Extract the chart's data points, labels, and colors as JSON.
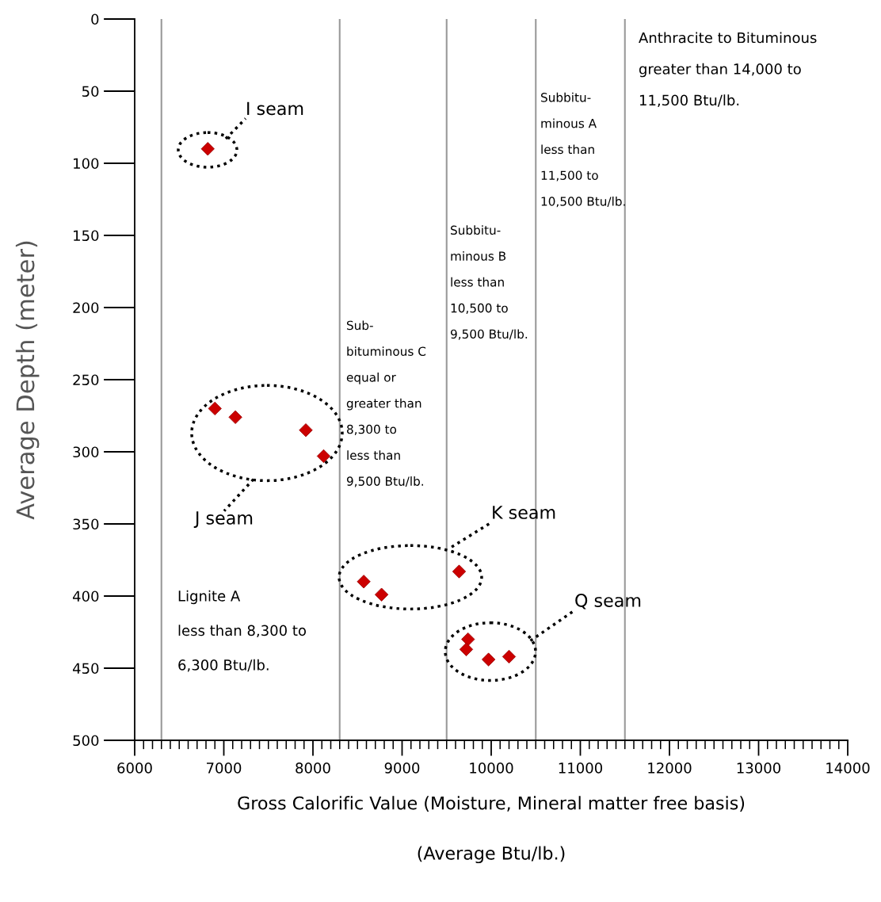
{
  "chart_data": {
    "type": "scatter",
    "xlabel": "Gross Calorific Value (Moisture, Mineral matter free basis)\n\n(Average Btu/lb.)",
    "ylabel": "Average Depth (meter)",
    "x": [
      6820,
      6900,
      7130,
      7920,
      8120,
      8570,
      8770,
      9640,
      9740,
      9720,
      9970,
      10200
    ],
    "series": [
      {
        "color": "#cc0000",
        "values": [
          90,
          270,
          276,
          285,
          303,
          390,
          399,
          383,
          430,
          437,
          444,
          442
        ]
      }
    ],
    "marker": "diamond",
    "xlim": [
      6000,
      14000
    ],
    "xticks": [
      6000,
      7000,
      8000,
      9000,
      10000,
      11000,
      12000,
      13000,
      14000
    ],
    "ylim": [
      500,
      0
    ],
    "yticks": [
      0,
      50,
      100,
      150,
      200,
      250,
      300,
      350,
      400,
      450,
      500
    ],
    "grid": false,
    "legend": false,
    "ref_lines": [
      {
        "axis": "x",
        "value": 6300,
        "color": "#999999"
      },
      {
        "axis": "x",
        "value": 8300,
        "color": "#999999"
      },
      {
        "axis": "x",
        "value": 9500,
        "color": "#999999"
      },
      {
        "axis": "x",
        "value": 10500,
        "color": "#999999"
      },
      {
        "axis": "x",
        "value": 11500,
        "color": "#999999"
      }
    ],
    "annotations": [
      "I seam",
      "J seam",
      "K seam",
      "Q seam",
      "Lignite A\nless than 8,300 to\n6,300 Btu/lb.",
      "Sub-\nbituminous C\nequal or\ngreater than\n8,300 to\nless than\n9,500 Btu/lb.",
      "Subbitu-\nminous B\nless than\n10,500 to\n9,500 Btu/lb.",
      "Subbitu-\nminous A\nless than\n11,500 to\n10,500 Btu/lb.",
      "Anthracite to Bituminous\ngreater than 14,000 to\n11,500 Btu/lb."
    ]
  }
}
